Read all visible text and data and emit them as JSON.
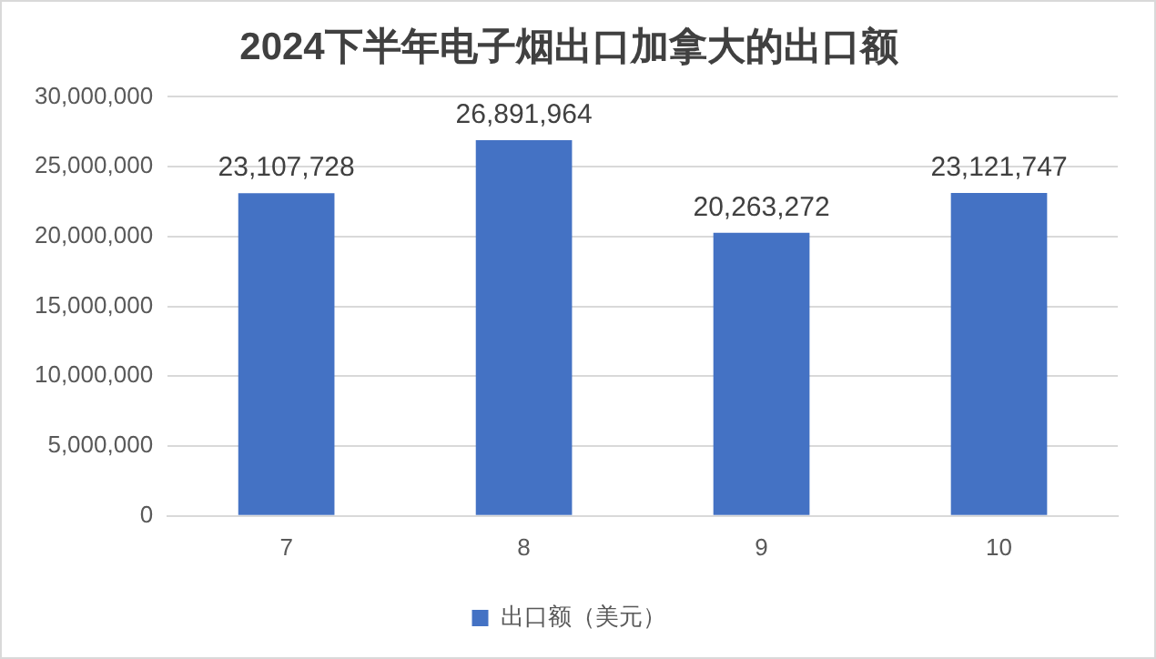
{
  "chart_data": {
    "type": "bar",
    "title": "2024下半年电子烟出口加拿大的出口额",
    "categories": [
      "7",
      "8",
      "9",
      "10"
    ],
    "series": [
      {
        "name": "出口额（美元）",
        "color": "#4472c4",
        "values": [
          23107728,
          26891964,
          20263272,
          23121747
        ],
        "value_labels": [
          "23,107,728",
          "26,891,964",
          "20,263,272",
          "23,121,747"
        ]
      }
    ],
    "ylim": [
      0,
      30000000
    ],
    "yticks": [
      0,
      {
        "value": 5000000,
        "label": "5,000,000"
      },
      {
        "value": 10000000,
        "label": "10,000,000"
      },
      {
        "value": 15000000,
        "label": "15,000,000"
      },
      {
        "value": 20000000,
        "label": "20,000,000"
      },
      {
        "value": 25000000,
        "label": "25,000,000"
      },
      {
        "value": 30000000,
        "label": "30,000,000"
      }
    ],
    "grid": "y",
    "legend": "bottom"
  }
}
